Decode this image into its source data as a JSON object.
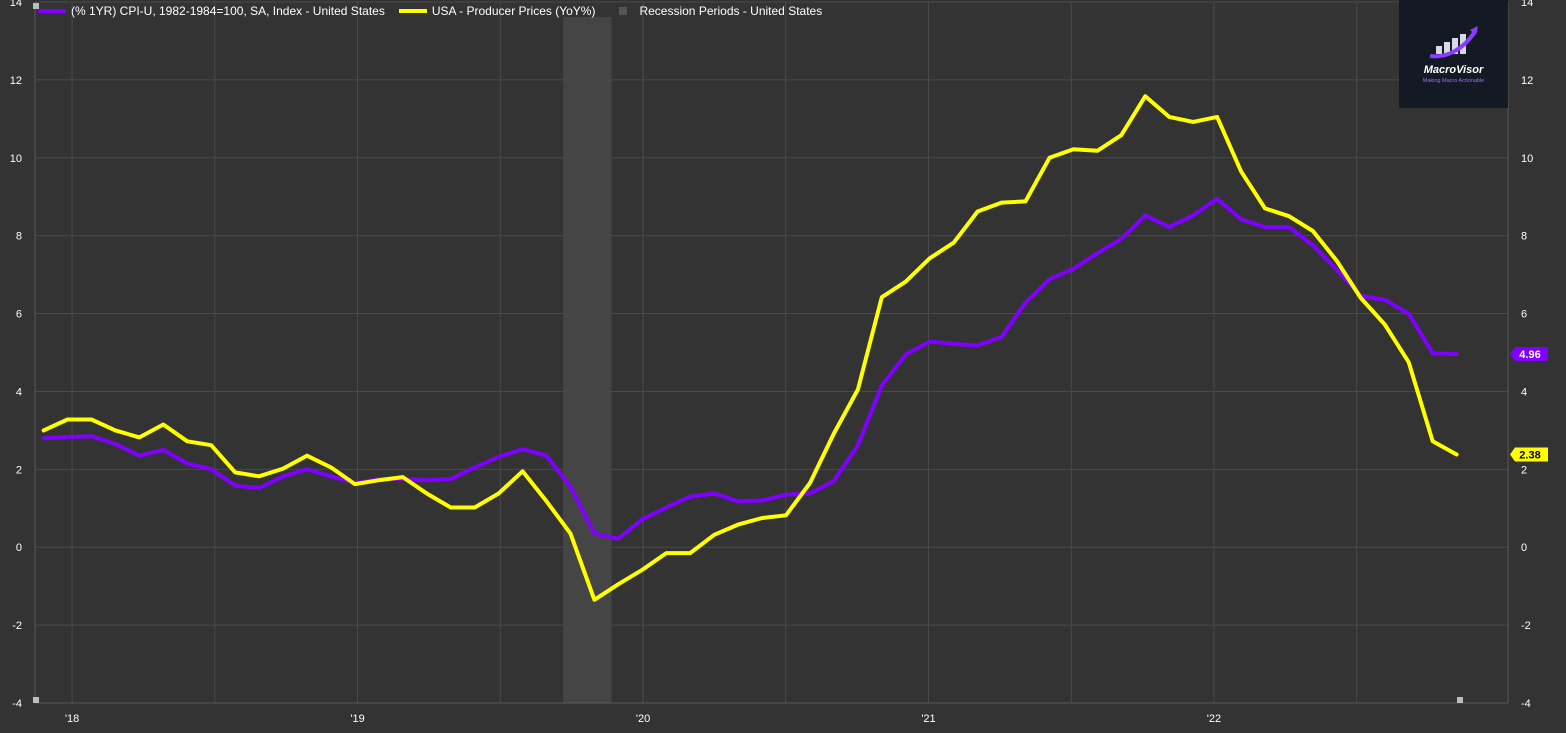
{
  "legend": {
    "cpi_label": "(% 1YR) CPI-U, 1982-1984=100, SA, Index - United States",
    "ppi_label": "USA - Producer Prices (YoY%)",
    "recession_label": "Recession Periods - United States"
  },
  "logo": {
    "name": "MacroVisor",
    "tagline": "Making Macro Actionable"
  },
  "colors": {
    "cpi": "#7f00ff",
    "ppi": "#ffff00",
    "recession": "#474747",
    "background": "#333333",
    "grid": "#4a4a4a"
  },
  "chart_data": {
    "type": "line",
    "x_ticks": [
      {
        "label": "'18",
        "t": 2018.0
      },
      {
        "label": "'19",
        "t": 2019.0
      },
      {
        "label": "'20",
        "t": 2020.0
      },
      {
        "label": "'21",
        "t": 2021.0
      },
      {
        "label": "'22",
        "t": 2022.0
      }
    ],
    "xlim": [
      2017.87,
      2023.03
    ],
    "ylim": [
      -4,
      14
    ],
    "y_ticks": [
      -4,
      -2,
      0,
      2,
      4,
      6,
      8,
      10,
      12,
      14
    ],
    "grid": true,
    "recession": [
      2019.72,
      2019.89
    ],
    "series": [
      {
        "name": "(% 1YR) CPI-U, 1982-1984=100, SA, Index - United States",
        "color": "#7f00ff",
        "last_label": "4.96",
        "t0": 2017.9,
        "step": 0.0839,
        "values": [
          2.8,
          2.83,
          2.85,
          2.65,
          2.35,
          2.5,
          2.15,
          2.0,
          1.58,
          1.52,
          1.82,
          2.0,
          1.82,
          1.65,
          1.75,
          1.75,
          1.72,
          1.75,
          2.05,
          2.32,
          2.52,
          2.35,
          1.55,
          0.35,
          0.22,
          0.72,
          1.02,
          1.3,
          1.38,
          1.18,
          1.2,
          1.35,
          1.38,
          1.7,
          2.62,
          4.15,
          4.95,
          5.28,
          5.22,
          5.18,
          5.4,
          6.28,
          6.88,
          7.15,
          7.55,
          7.92,
          8.52,
          8.22,
          8.52,
          8.95,
          8.42,
          8.22,
          8.22,
          7.75,
          7.12,
          6.45,
          6.35,
          6.0,
          4.98,
          4.96
        ]
      },
      {
        "name": "USA - Producer Prices (YoY%)",
        "color": "#ffff00",
        "last_label": "2.38",
        "t0": 2017.9,
        "step": 0.0839,
        "values": [
          3.0,
          3.28,
          3.28,
          3.0,
          2.82,
          3.15,
          2.72,
          2.62,
          1.92,
          1.82,
          2.02,
          2.35,
          2.05,
          1.62,
          1.72,
          1.8,
          1.38,
          1.02,
          1.02,
          1.38,
          1.95,
          1.18,
          0.35,
          -1.35,
          -0.95,
          -0.58,
          -0.15,
          -0.15,
          0.32,
          0.58,
          0.75,
          0.82,
          1.65,
          2.92,
          4.05,
          6.42,
          6.82,
          7.42,
          7.82,
          8.62,
          8.85,
          8.88,
          10.0,
          10.22,
          10.18,
          10.58,
          11.58,
          11.05,
          10.92,
          11.05,
          9.65,
          8.7,
          8.5,
          8.12,
          7.35,
          6.4,
          5.72,
          4.75,
          2.72,
          2.38
        ]
      }
    ]
  }
}
